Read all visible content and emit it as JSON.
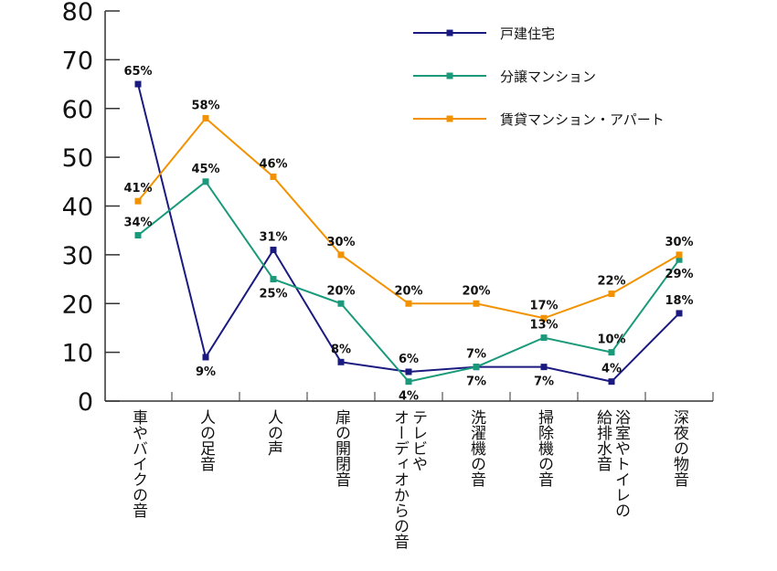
{
  "chart_data": {
    "type": "line",
    "title": "",
    "xlabel": "",
    "ylabel": "",
    "ylim": [
      0,
      80
    ],
    "yticks": [
      0,
      10,
      20,
      30,
      40,
      50,
      60,
      70,
      80
    ],
    "grid": false,
    "legend_position": "top-right",
    "categories": [
      "車やバイクの音",
      "人の足音",
      "人の声",
      "扉の開閉音",
      "テレビや\nオーディオからの音",
      "洗濯機の音",
      "掃除機の音",
      "浴室やトイレの\n給排水音",
      "深夜の物音"
    ],
    "series": [
      {
        "name": "戸建住宅",
        "color": "#1a1a80",
        "values": [
          65,
          9,
          31,
          8,
          6,
          7,
          7,
          4,
          18
        ],
        "label_pos": [
          "above",
          "below",
          "above",
          "above",
          "above",
          "above",
          "below",
          "above",
          "above"
        ]
      },
      {
        "name": "分譲マンション",
        "color": "#1a9a7a",
        "values": [
          34,
          45,
          25,
          20,
          4,
          7,
          13,
          10,
          29
        ],
        "label_pos": [
          "above",
          "above",
          "below",
          "above",
          "below",
          "below",
          "above",
          "above",
          "below"
        ]
      },
      {
        "name": "賃貸マンション・アパート",
        "color": "#f39200",
        "values": [
          41,
          58,
          46,
          30,
          20,
          20,
          17,
          22,
          30
        ],
        "label_pos": [
          "above",
          "above",
          "above",
          "above",
          "above",
          "above",
          "above",
          "above",
          "above"
        ]
      }
    ],
    "label_suffix": "%"
  }
}
